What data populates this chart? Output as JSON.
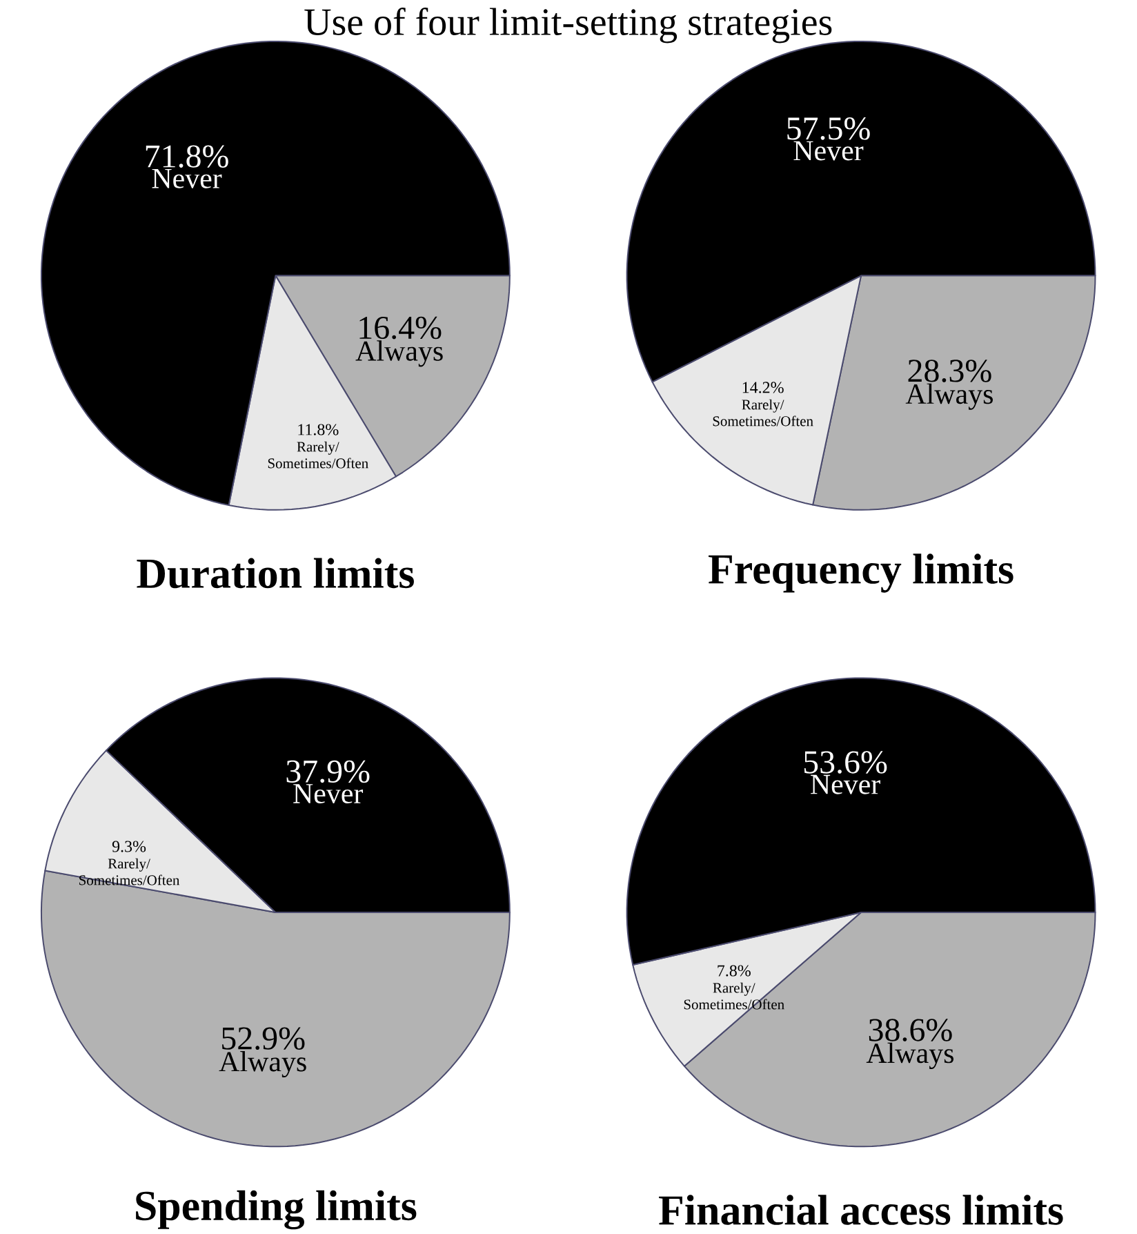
{
  "chart_data": [
    {
      "type": "pie",
      "title": "Duration limits",
      "annotations": [
        "Use of four limit-setting strategies"
      ],
      "categories": [
        "Always",
        "Rarely/ Sometimes/Often",
        "Never"
      ],
      "values": [
        16.4,
        11.8,
        71.8
      ],
      "value_labels": [
        "16.4%",
        "11.8%",
        "71.8%"
      ],
      "colors": [
        "#b3b3b3",
        "#e8e8e8",
        "#000000"
      ]
    },
    {
      "type": "pie",
      "title": "Frequency limits",
      "categories": [
        "Always",
        "Rarely/ Sometimes/Often",
        "Never"
      ],
      "values": [
        28.3,
        14.2,
        57.5
      ],
      "value_labels": [
        "28.3%",
        "14.2%",
        "57.5%"
      ],
      "colors": [
        "#b3b3b3",
        "#e8e8e8",
        "#000000"
      ]
    },
    {
      "type": "pie",
      "title": "Spending limits",
      "categories": [
        "Always",
        "Rarely/ Sometimes/Often",
        "Never"
      ],
      "values": [
        52.9,
        9.3,
        37.9
      ],
      "value_labels": [
        "52.9%",
        "9.3%",
        "37.9%"
      ],
      "colors": [
        "#b3b3b3",
        "#e8e8e8",
        "#000000"
      ]
    },
    {
      "type": "pie",
      "title": "Financial access limits",
      "categories": [
        "Always",
        "Rarely/ Sometimes/Often",
        "Never"
      ],
      "values": [
        38.6,
        7.8,
        53.6
      ],
      "value_labels": [
        "38.6%",
        "7.8%",
        "53.6%"
      ],
      "colors": [
        "#b3b3b3",
        "#e8e8e8",
        "#000000"
      ]
    }
  ]
}
